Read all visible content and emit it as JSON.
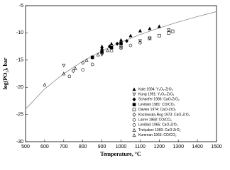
{
  "chart_data": {
    "type": "scatter",
    "x_label": "Temperature, °C",
    "y_label": "log(PO₂), bar",
    "xlim": [
      500,
      1500
    ],
    "xticks": [
      500,
      600,
      700,
      800,
      900,
      1000,
      1100,
      1200,
      1300,
      1400,
      1500
    ],
    "ylim": [
      -30,
      -5
    ],
    "yticks": [
      -30,
      -25,
      -20,
      -15,
      -10,
      -5
    ],
    "legend": "lower right",
    "line": {
      "color": "#8c8c8c",
      "x": [
        500,
        600,
        700,
        800,
        900,
        1000,
        1100,
        1200,
        1300,
        1400,
        1500
      ],
      "values": [
        -24,
        -20.3,
        -17.5,
        -15.2,
        -13.3,
        -11.7,
        -10.3,
        -9.1,
        -8,
        -7,
        -6.1
      ]
    },
    "series": [
      {
        "name": "Kale 1994: Y₂O₃-ZrO₂",
        "color": "#000000",
        "marker": "triangle-up",
        "filled": true,
        "x": [
          900,
          950,
          1000,
          1050,
          1100,
          1150,
          1200
        ],
        "values": [
          -12.5,
          -12,
          -11.3,
          -10.5,
          -9.6,
          -9.2,
          -8.8
        ]
      },
      {
        "name": "Kung 1991: Y₂O₃-ZrO₂",
        "color": "#000000",
        "marker": "triangle-down",
        "filled": false,
        "x": [
          700,
          900,
          1000,
          1100,
          1150,
          1250
        ],
        "values": [
          -16,
          -14,
          -12.7,
          -11.5,
          -11,
          -9.5
        ]
      },
      {
        "name": "Schaefer 1986: CaO-ZrO₂",
        "color": "#000000",
        "marker": "diamond",
        "filled": true,
        "x": [
          900,
          940,
          980,
          1000,
          1030
        ],
        "values": [
          -13,
          -12.5,
          -12,
          -11.8,
          -11.5
        ]
      },
      {
        "name": "Levitskii 1981: CO/CO₂",
        "color": "#000000",
        "marker": "square",
        "filled": true,
        "x": [
          850,
          900,
          950,
          1000
        ],
        "values": [
          -14.5,
          -13.5,
          -12.7,
          -12
        ]
      },
      {
        "name": "Davies 1974: CaO-ZrO₂",
        "color": "#000000",
        "marker": "square",
        "filled": false,
        "x": [
          1150,
          1200,
          1250,
          1270
        ],
        "values": [
          -11,
          -10.5,
          -10,
          -9.7
        ]
      },
      {
        "name": "Kozlowska-Rog 1973: CaO-ZrO₂",
        "color": "#000000",
        "marker": "diamond",
        "filled": false,
        "x": [
          750,
          800,
          850,
          900
        ],
        "values": [
          -17,
          -15.5,
          -14.5,
          -13.7
        ]
      },
      {
        "name": "Larrer 1968: CO/CO₂",
        "color": "#000000",
        "marker": "circle",
        "filled": false,
        "x": [
          950,
          1000,
          1050,
          1100
        ],
        "values": [
          -13.3,
          -12.8,
          -12.3,
          -11.8
        ]
      },
      {
        "name": "Levitskii 1965: CaO-ZrO₂",
        "color": "#000000",
        "marker": "circle",
        "filled": false,
        "x": [
          730,
          800,
          850
        ],
        "values": [
          -18,
          -16.8,
          -15.8
        ]
      },
      {
        "name": "Tretyakov 1960: CaO-ZrO₂",
        "color": "#000000",
        "marker": "triangle-up",
        "filled": false,
        "x": [
          600,
          700,
          760
        ],
        "values": [
          -19.5,
          -17.5,
          -16.5
        ]
      },
      {
        "name": "Kumman 1963: CO/CO₂",
        "color": "#000000",
        "marker": "triangle-up",
        "filled": false,
        "x": [
          820,
          880,
          930
        ],
        "values": [
          -15,
          -14,
          -13.2
        ]
      }
    ]
  }
}
